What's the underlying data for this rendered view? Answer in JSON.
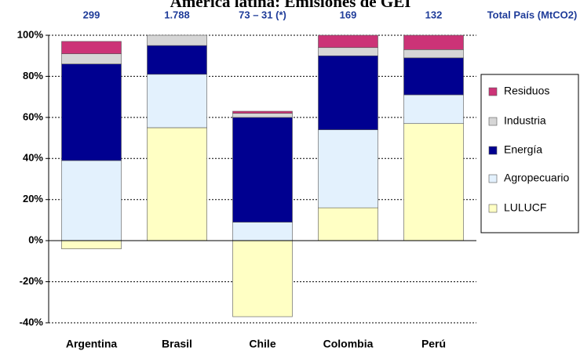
{
  "chart_data": {
    "type": "stacked_bar",
    "title": "América latina: Emisiones de GEI",
    "categories": [
      "Argentina",
      "Brasil",
      "Chile",
      "Colombia",
      "Perú"
    ],
    "annotations": [
      "299",
      "1.788",
      "73 – 31 (*)",
      "169",
      "132"
    ],
    "annotation_title": "Total País (MtCO2)",
    "series": [
      {
        "name": "LULUCF",
        "color": "#ffffc4",
        "values": [
          -4,
          55,
          -37,
          16,
          57
        ]
      },
      {
        "name": "Agropecuario",
        "color": "#e3f1fd",
        "values": [
          39,
          26,
          9,
          38,
          14
        ]
      },
      {
        "name": "Energía",
        "color": "#000090",
        "values": [
          47,
          14,
          51,
          36,
          18
        ]
      },
      {
        "name": "Industria",
        "color": "#d6d6d6",
        "values": [
          5,
          5,
          2,
          4,
          4
        ]
      },
      {
        "name": "Residuos",
        "color": "#cc3377",
        "values": [
          6,
          0,
          1,
          6,
          7
        ]
      }
    ],
    "ylim": [
      -40,
      100
    ],
    "yticks": [
      {
        "value": -40,
        "label": "-40%"
      },
      {
        "value": -20,
        "label": "-20%"
      },
      {
        "value": 0,
        "label": "0%"
      },
      {
        "value": 20,
        "label": "20%"
      },
      {
        "value": 40,
        "label": "40%"
      },
      {
        "value": 60,
        "label": "60%"
      },
      {
        "value": 80,
        "label": "80%"
      },
      {
        "value": 100,
        "label": "100%"
      }
    ],
    "grid": true,
    "legend": "right"
  }
}
